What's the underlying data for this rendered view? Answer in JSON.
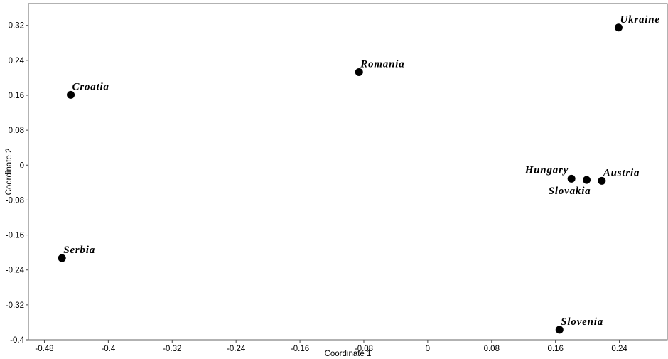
{
  "chart_data": {
    "type": "scatter",
    "title": "",
    "xlabel": "Coordinate 1",
    "ylabel": "Coordinate 2",
    "xlim": [
      -0.5,
      0.3
    ],
    "ylim": [
      -0.4,
      0.37
    ],
    "grid": false,
    "x_ticks": [
      -0.48,
      -0.4,
      -0.32,
      -0.24,
      -0.16,
      -0.08,
      0,
      0.08,
      0.16,
      0.24
    ],
    "x_tick_labels": [
      "-0.48",
      "-0.4",
      "-0.32",
      "-0.24",
      "-0.16",
      "-0.08",
      "0",
      "0.08",
      "0.16",
      "0.24"
    ],
    "y_ticks": [
      0.32,
      0.24,
      0.16,
      0.08,
      0,
      -0.08,
      -0.16,
      -0.24,
      -0.32,
      -0.4
    ],
    "y_tick_labels": [
      "0.32",
      "0.24",
      "0.16",
      "0.08",
      "0",
      "-0.08",
      "-0.16",
      "-0.24",
      "-0.32",
      "-0.4"
    ],
    "points": [
      {
        "label": "Ukraine",
        "x": 0.239,
        "y": 0.315,
        "label_pos": "above-right"
      },
      {
        "label": "Romania",
        "x": -0.086,
        "y": 0.213,
        "label_pos": "above-right"
      },
      {
        "label": "Croatia",
        "x": -0.447,
        "y": 0.161,
        "label_pos": "above-right"
      },
      {
        "label": "Hungary",
        "x": 0.18,
        "y": -0.031,
        "label_pos": "above-left"
      },
      {
        "label": "Slovakia",
        "x": 0.199,
        "y": -0.034,
        "label_pos": "below-left"
      },
      {
        "label": "Austria",
        "x": 0.218,
        "y": -0.036,
        "label_pos": "above-right"
      },
      {
        "label": "Serbia",
        "x": -0.458,
        "y": -0.213,
        "label_pos": "above-right"
      },
      {
        "label": "Slovenia",
        "x": 0.165,
        "y": -0.377,
        "label_pos": "above-right"
      }
    ]
  }
}
